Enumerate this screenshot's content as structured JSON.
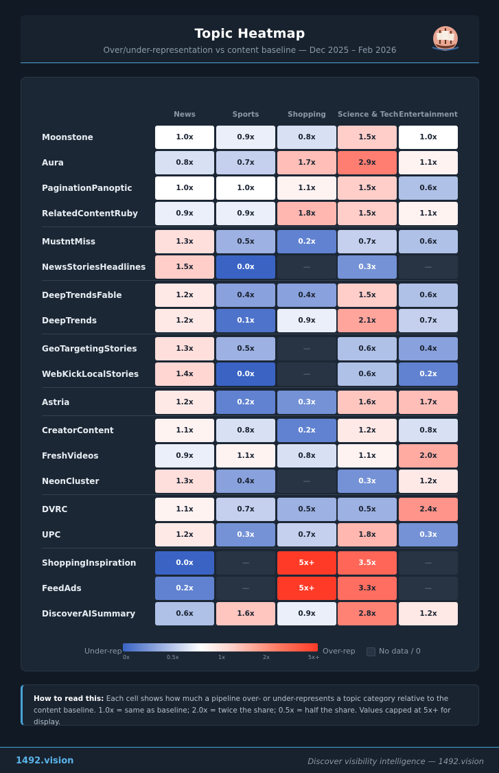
{
  "header": {
    "title": "Topic Heatmap",
    "subtitle": "Over/under-representation vs content baseline — Dec 2025 – Feb 2026"
  },
  "chart_data": {
    "type": "heatmap",
    "columns": [
      "News",
      "Sports",
      "Shopping",
      "Science & Tech",
      "Entertainment"
    ],
    "rows": [
      {
        "name": "Moonstone",
        "values": [
          "1.0x",
          "0.9x",
          "0.8x",
          "1.5x",
          "1.0x"
        ]
      },
      {
        "name": "Aura",
        "values": [
          "0.8x",
          "0.7x",
          "1.7x",
          "2.9x",
          "1.1x"
        ]
      },
      {
        "name": "PaginationPanoptic",
        "values": [
          "1.0x",
          "1.0x",
          "1.1x",
          "1.5x",
          "0.6x"
        ]
      },
      {
        "name": "RelatedContentRuby",
        "values": [
          "0.9x",
          "0.9x",
          "1.8x",
          "1.5x",
          "1.1x"
        ]
      },
      {
        "name": "MustntMiss",
        "values": [
          "1.3x",
          "0.5x",
          "0.2x",
          "0.7x",
          "0.6x"
        ]
      },
      {
        "name": "NewsStoriesHeadlines",
        "values": [
          "1.5x",
          "0.0x",
          "—",
          "0.3x",
          "—"
        ]
      },
      {
        "name": "DeepTrendsFable",
        "values": [
          "1.2x",
          "0.4x",
          "0.4x",
          "1.5x",
          "0.6x"
        ]
      },
      {
        "name": "DeepTrends",
        "values": [
          "1.2x",
          "0.1x",
          "0.9x",
          "2.1x",
          "0.7x"
        ]
      },
      {
        "name": "GeoTargetingStories",
        "values": [
          "1.3x",
          "0.5x",
          "—",
          "0.6x",
          "0.4x"
        ]
      },
      {
        "name": "WebKickLocalStories",
        "values": [
          "1.4x",
          "0.0x",
          "—",
          "0.6x",
          "0.2x"
        ]
      },
      {
        "name": "Astria",
        "values": [
          "1.2x",
          "0.2x",
          "0.3x",
          "1.6x",
          "1.7x"
        ]
      },
      {
        "name": "CreatorContent",
        "values": [
          "1.1x",
          "0.8x",
          "0.2x",
          "1.2x",
          "0.8x"
        ]
      },
      {
        "name": "FreshVideos",
        "values": [
          "0.9x",
          "1.1x",
          "0.8x",
          "1.1x",
          "2.0x"
        ]
      },
      {
        "name": "NeonCluster",
        "values": [
          "1.3x",
          "0.4x",
          "—",
          "0.3x",
          "1.2x"
        ]
      },
      {
        "name": "DVRC",
        "values": [
          "1.1x",
          "0.7x",
          "0.5x",
          "0.5x",
          "2.4x"
        ]
      },
      {
        "name": "UPC",
        "values": [
          "1.2x",
          "0.3x",
          "0.7x",
          "1.8x",
          "0.3x"
        ]
      },
      {
        "name": "ShoppingInspiration",
        "values": [
          "0.0x",
          "—",
          "5x+",
          "3.5x",
          "—"
        ]
      },
      {
        "name": "FeedAds",
        "values": [
          "0.2x",
          "—",
          "5x+",
          "3.3x",
          "—"
        ]
      },
      {
        "name": "DiscoverAISummary",
        "values": [
          "0.6x",
          "1.6x",
          "0.9x",
          "2.8x",
          "1.2x"
        ]
      }
    ],
    "groups_after_rows": [
      3,
      5,
      7,
      9,
      10,
      13,
      15
    ],
    "scale": {
      "min": 0,
      "baseline": 1,
      "max": 5
    },
    "colors": {
      "under": "#3a63c4",
      "baseline": "#ffffff",
      "over": "#ff3b28",
      "no_data": "#283443"
    }
  },
  "legend": {
    "under_label": "Under-rep",
    "over_label": "Over-rep",
    "no_data_label": "No data / 0",
    "ticks": [
      "0x",
      "0.5x",
      "1x",
      "2x",
      "5x+"
    ]
  },
  "note": {
    "lead": "How to read this:",
    "text": " Each cell shows how much a pipeline over- or under-represents a topic category relative to the content baseline. 1.0x = same as baseline; 2.0x = twice the share; 0.5x = half the share. Values capped at 5x+ for display."
  },
  "footer": {
    "brand": "1492.vision",
    "tagline": "Discover visibility intelligence — 1492.vision"
  }
}
